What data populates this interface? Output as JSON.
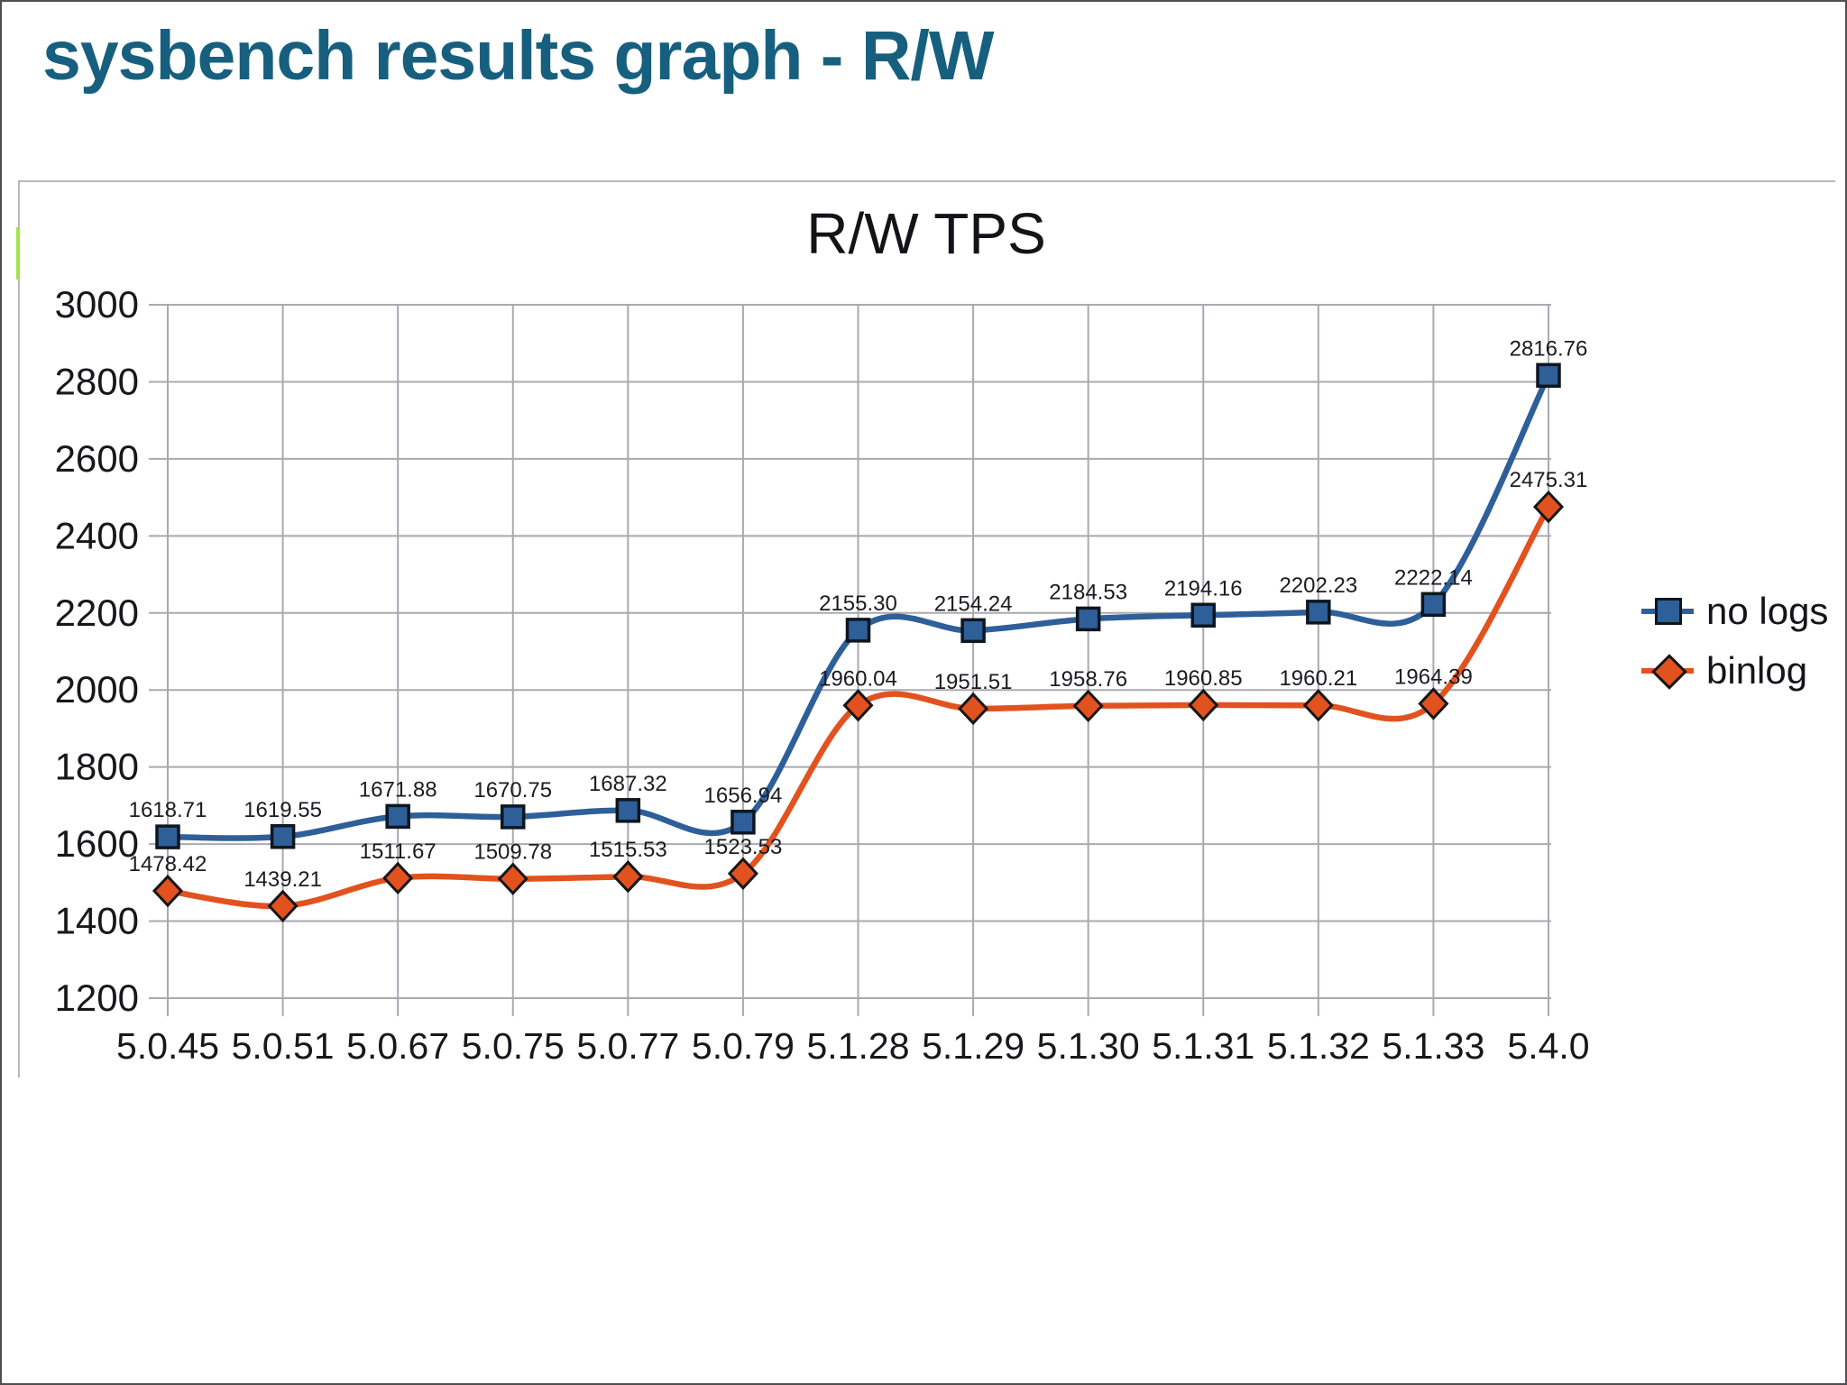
{
  "slide": {
    "title": "sysbench results graph - R/W",
    "title_color": "#175f7e"
  },
  "chart_data": {
    "type": "line",
    "title": "R/W TPS",
    "categories": [
      "5.0.45",
      "5.0.51",
      "5.0.67",
      "5.0.75",
      "5.0.77",
      "5.0.79",
      "5.1.28",
      "5.1.29",
      "5.1.30",
      "5.1.31",
      "5.1.32",
      "5.1.33",
      "5.4.0"
    ],
    "series": [
      {
        "name": "no logs",
        "marker": "square",
        "color": "#2e5f99",
        "marker_edge": "#0e1620",
        "values": [
          1618.71,
          1619.55,
          1671.88,
          1670.75,
          1687.32,
          1656.94,
          2155.3,
          2154.24,
          2184.53,
          2194.16,
          2202.23,
          2222.14,
          2816.76
        ],
        "labels": [
          "1618.71",
          "1619.55",
          "1671.88",
          "1670.75",
          "1687.32",
          "1656.94",
          "2155.30",
          "2154.24",
          "2184.53",
          "2194.16",
          "2202.23",
          "2222.14",
          "2816.76"
        ]
      },
      {
        "name": "binlog",
        "marker": "diamond",
        "color": "#e2521f",
        "marker_edge": "#161616",
        "values": [
          1478.42,
          1439.21,
          1511.67,
          1509.78,
          1515.53,
          1523.53,
          1960.04,
          1951.51,
          1958.76,
          1960.85,
          1960.21,
          1964.39,
          2475.31
        ],
        "labels": [
          "1478.42",
          "1439.21",
          "1511.67",
          "1509.78",
          "1515.53",
          "1523.53",
          "1960.04",
          "1951.51",
          "1958.76",
          "1960.85",
          "1960.21",
          "1964.39",
          "2475.31"
        ]
      }
    ],
    "ylim": [
      1200,
      3000
    ],
    "yticks": [
      3000,
      2800,
      2600,
      2400,
      2200,
      2000,
      1800,
      1600,
      1400,
      1200
    ],
    "grid": true,
    "legend_position": "right",
    "gridline_color": "#a9a9b0",
    "axis_label_color": "#17171c",
    "data_label_color": "#1b1b22"
  }
}
